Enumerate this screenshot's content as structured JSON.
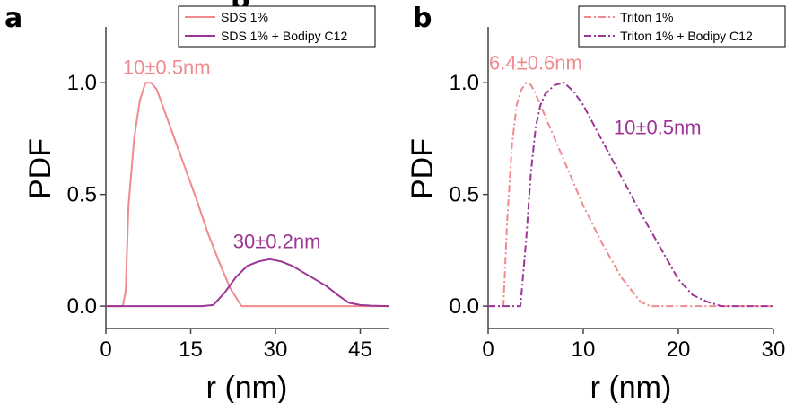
{
  "panels": [
    {
      "letter": "a",
      "ylabel": "PDF",
      "xlabel": "r (nm)",
      "xlim": [
        0,
        50
      ],
      "ylim": [
        -0.1,
        1.25
      ],
      "xticks": [
        "0",
        "15",
        "30",
        "45"
      ],
      "xtick_values": [
        0,
        15,
        30,
        45
      ],
      "yticks": [
        "0.0",
        "0.5",
        "1.0"
      ],
      "ytick_values": [
        0,
        0.5,
        1.0
      ],
      "annotations": [
        {
          "text": "10±0.5nm",
          "color": "#f08a8f",
          "x": 3.0,
          "y": 1.04
        },
        {
          "text": "30±0.2nm",
          "color": "#9c3596",
          "x": 22.5,
          "y": 0.26
        }
      ]
    },
    {
      "letter": "b",
      "ylabel": "PDF",
      "xlabel": "r (nm)",
      "xlim": [
        0,
        30
      ],
      "ylim": [
        -0.1,
        1.25
      ],
      "xticks": [
        "0",
        "10",
        "20",
        "30"
      ],
      "xtick_values": [
        0,
        10,
        20,
        30
      ],
      "yticks": [
        "0.0",
        "0.5",
        "1.0"
      ],
      "ytick_values": [
        0,
        0.5,
        1.0
      ],
      "annotations": [
        {
          "text": "6.4±0.6nm",
          "color": "#f08a8f",
          "x": 0.1,
          "y": 1.06
        },
        {
          "text": "10±0.5nm",
          "color": "#9c3596",
          "x": 13.2,
          "y": 0.77
        }
      ]
    }
  ],
  "chart_data": [
    {
      "type": "line",
      "xlabel": "r (nm)",
      "ylabel": "PDF",
      "xlim": [
        0,
        50
      ],
      "ylim": [
        -0.1,
        1.25
      ],
      "grid": false,
      "legend": "top-right",
      "series": [
        {
          "name": "SDS 1%",
          "color": "#f08a8f",
          "dash": "solid",
          "x": [
            0,
            3,
            3.5,
            4,
            5,
            6,
            7,
            8,
            9,
            10,
            12,
            14,
            16,
            18,
            20,
            22,
            24,
            26,
            50
          ],
          "y": [
            0,
            0,
            0.07,
            0.45,
            0.75,
            0.92,
            1.0,
            1.0,
            0.97,
            0.9,
            0.76,
            0.62,
            0.48,
            0.33,
            0.2,
            0.08,
            0,
            0,
            0
          ]
        },
        {
          "name": "SDS 1% + Bodipy C12",
          "color": "#9c3596",
          "dash": "solid",
          "x": [
            0,
            17,
            19,
            21,
            23,
            25,
            27,
            29,
            31,
            33,
            35,
            37,
            39,
            41,
            43,
            45,
            47,
            50
          ],
          "y": [
            0,
            0,
            0.005,
            0.06,
            0.13,
            0.18,
            0.2,
            0.21,
            0.2,
            0.18,
            0.15,
            0.12,
            0.09,
            0.05,
            0.015,
            0.005,
            0.002,
            0
          ]
        }
      ]
    },
    {
      "type": "line",
      "xlabel": "r (nm)",
      "ylabel": "PDF",
      "xlim": [
        0,
        30
      ],
      "ylim": [
        -0.1,
        1.25
      ],
      "grid": false,
      "legend": "top-right",
      "series": [
        {
          "name": "Triton 1%",
          "color": "#f08a8f",
          "dash": "dashdot",
          "x": [
            0,
            1.6,
            2,
            2.5,
            3,
            3.5,
            4,
            4.5,
            5,
            6,
            8,
            10,
            12,
            14,
            16,
            17,
            30
          ],
          "y": [
            0,
            0,
            0.38,
            0.72,
            0.9,
            0.97,
            1.0,
            0.99,
            0.95,
            0.85,
            0.65,
            0.45,
            0.28,
            0.13,
            0.02,
            0,
            0
          ]
        },
        {
          "name": "Triton 1% + Bodipy C12",
          "color": "#9c3596",
          "dash": "dashdot",
          "x": [
            0,
            3.4,
            4,
            4.5,
            5,
            5.5,
            6,
            7,
            8,
            9,
            10,
            12,
            14,
            16,
            18,
            20,
            21.5,
            23,
            24.5,
            30
          ],
          "y": [
            0,
            0,
            0.3,
            0.6,
            0.8,
            0.9,
            0.95,
            0.99,
            1.0,
            0.96,
            0.9,
            0.74,
            0.58,
            0.42,
            0.27,
            0.12,
            0.05,
            0.02,
            0,
            0
          ]
        }
      ]
    }
  ]
}
